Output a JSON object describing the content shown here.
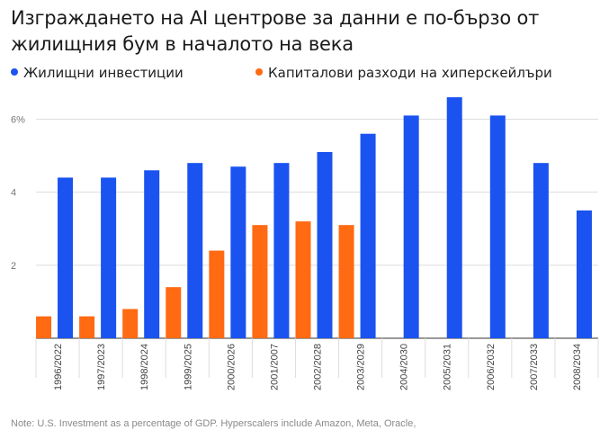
{
  "chart_data": {
    "type": "bar",
    "title": "Изграждането на AI центрове за данни е по-бързо от жилищния бум в началото на века",
    "ylim": [
      0,
      6.8
    ],
    "yticks": [
      {
        "value": 2,
        "label": "2"
      },
      {
        "value": 4,
        "label": "4"
      },
      {
        "value": 6,
        "label": "6%"
      }
    ],
    "grid": true,
    "legend_position": "top-left",
    "categories": [
      "1996/2022",
      "1997/2023",
      "1998/2024",
      "1999/2025",
      "2000/2026",
      "2001/2007",
      "2002/2028",
      "2003/2029",
      "2004/2030",
      "2005/2031",
      "2006/2032",
      "2007/2033",
      "2008/2034"
    ],
    "series": [
      {
        "name": "Жилищни инвестиции",
        "color": "#1a53f0",
        "values": [
          4.4,
          4.4,
          4.6,
          4.8,
          4.7,
          4.8,
          5.1,
          5.6,
          6.1,
          6.6,
          6.1,
          4.8,
          3.5
        ]
      },
      {
        "name": "Капиталови разходи на хиперскейлъри",
        "color": "#ff6a13",
        "values": [
          0.6,
          0.6,
          0.8,
          1.4,
          2.4,
          3.1,
          3.2,
          3.1,
          null,
          null,
          null,
          null,
          null
        ]
      }
    ]
  },
  "note": "Note: U.S. Investment as a percentage of GDP. Hyperscalers include Amazon, Meta, Oracle,"
}
